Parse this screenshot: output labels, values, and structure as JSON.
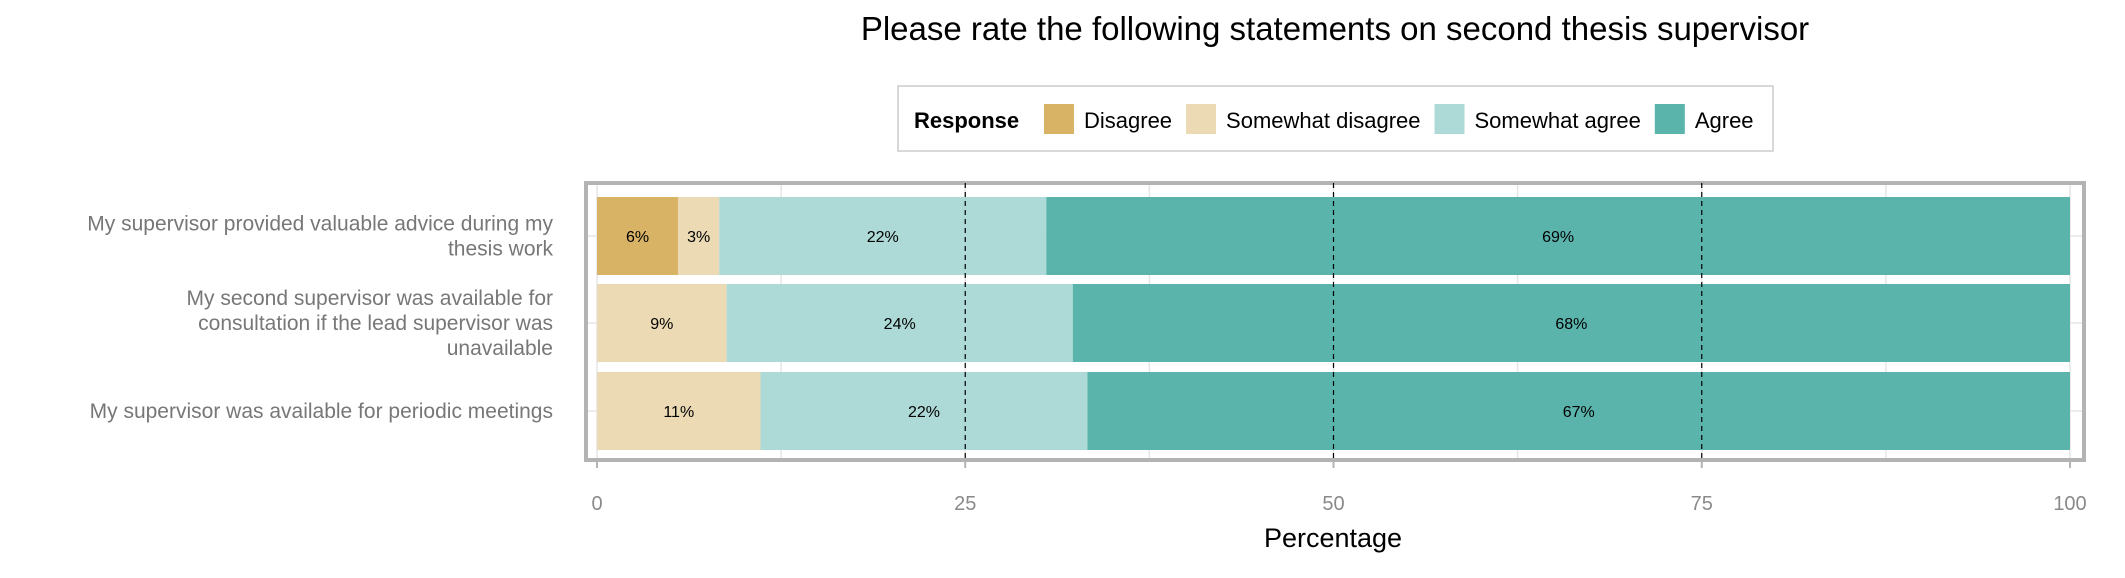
{
  "chart_data": {
    "type": "bar",
    "orientation": "horizontal",
    "stacked": true,
    "title": "Please rate the following statements on second thesis supervisor",
    "xlabel": "Percentage",
    "ylabel": "",
    "xlim": [
      0,
      100
    ],
    "xticks": [
      "0",
      "25",
      "50",
      "75",
      "100"
    ],
    "grid": true,
    "legend": {
      "title": "Response",
      "position": "top",
      "entries": [
        "Disagree",
        "Somewhat disagree",
        "Somewhat agree",
        "Agree"
      ]
    },
    "categories": [
      [
        "My supervisor provided valuable advice during my",
        "thesis work"
      ],
      [
        "My second supervisor was available for",
        "consultation if the lead supervisor was",
        "unavailable"
      ],
      [
        "My supervisor was available for periodic meetings"
      ]
    ],
    "series": [
      {
        "name": "Disagree",
        "color": "#D8B365",
        "values": [
          5.5,
          0,
          0
        ],
        "labels": [
          "6%",
          "",
          ""
        ]
      },
      {
        "name": "Somewhat disagree",
        "color": "#EBDAB4",
        "values": [
          2.8,
          8.8,
          11.1
        ],
        "labels": [
          "3%",
          "9%",
          "11%"
        ]
      },
      {
        "name": "Somewhat agree",
        "color": "#ADD9D6",
        "values": [
          22.2,
          23.5,
          22.2
        ],
        "labels": [
          "22%",
          "24%",
          "22%"
        ]
      },
      {
        "name": "Agree",
        "color": "#5AB4AC",
        "values": [
          69.5,
          67.7,
          66.7
        ],
        "labels": [
          "69%",
          "68%",
          "67%"
        ]
      }
    ]
  }
}
